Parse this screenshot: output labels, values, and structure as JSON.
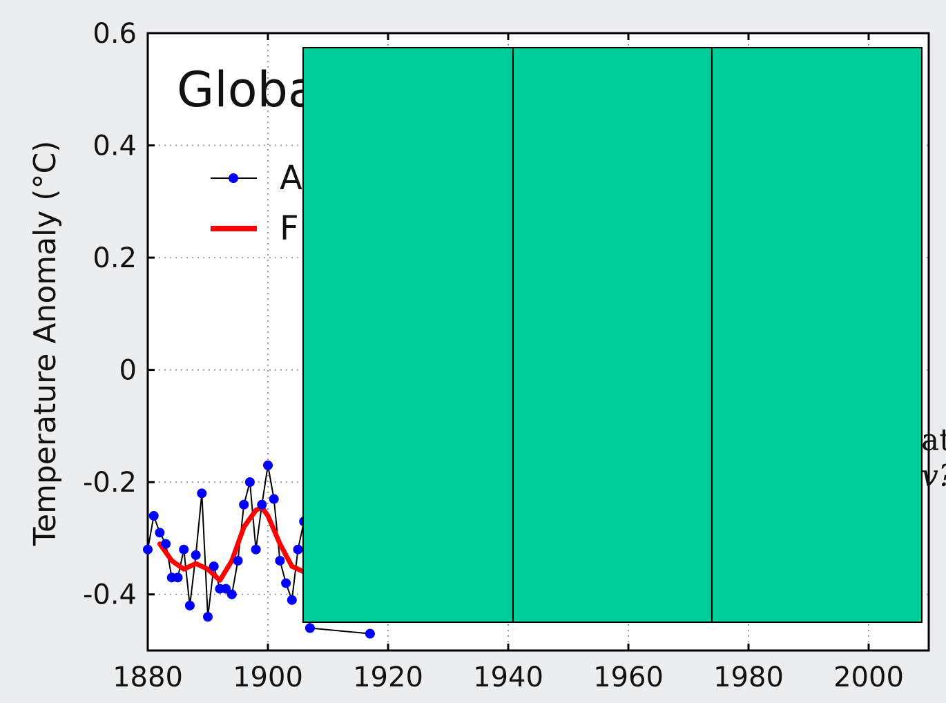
{
  "colors": {
    "background": "#ecedef",
    "plot_bg": "#ffffff",
    "points": "#0000ff",
    "line": "#000000",
    "smooth": "#ff0000",
    "overlay": "#00cc99"
  },
  "chart_data": {
    "type": "line",
    "title": "Globa",
    "ylabel": "Temperature Anomaly (°C)",
    "xlabel": "",
    "xlim": [
      1880,
      2010
    ],
    "ylim": [
      -0.5,
      0.6
    ],
    "xticks": [
      "1880",
      "1900",
      "1920",
      "1940",
      "1960",
      "1980",
      "2000"
    ],
    "yticks": [
      "0.6",
      "0.4",
      "0.2",
      "0",
      "-0.2",
      "-0.4"
    ],
    "grid": true,
    "legend": {
      "placement": "top-left",
      "entries": [
        "A",
        "F"
      ]
    },
    "series": [
      {
        "marker": "circle",
        "x": [
          1880,
          1881,
          1882,
          1883,
          1884,
          1885,
          1886,
          1887,
          1888,
          1889,
          1890,
          1891,
          1892,
          1893,
          1894,
          1895,
          1896,
          1897,
          1898,
          1899,
          1900,
          1901,
          1902,
          1903,
          1904,
          1905,
          1906,
          1907,
          1917
        ],
        "y": [
          -0.32,
          -0.26,
          -0.29,
          -0.31,
          -0.37,
          -0.37,
          -0.32,
          -0.42,
          -0.33,
          -0.22,
          -0.44,
          -0.35,
          -0.39,
          -0.39,
          -0.4,
          -0.34,
          -0.24,
          -0.2,
          -0.32,
          -0.24,
          -0.17,
          -0.23,
          -0.34,
          -0.38,
          -0.41,
          -0.32,
          -0.27,
          -0.46,
          -0.47
        ]
      },
      {
        "style": "smooth",
        "x": [
          1882,
          1884,
          1886,
          1888,
          1890,
          1892,
          1894,
          1896,
          1898,
          1899,
          1900,
          1902,
          1904,
          1906
        ],
        "y": [
          -0.31,
          -0.34,
          -0.355,
          -0.345,
          -0.355,
          -0.375,
          -0.34,
          -0.28,
          -0.25,
          -0.245,
          -0.26,
          -0.31,
          -0.35,
          -0.36
        ]
      }
    ]
  },
  "overlay": {
    "panels": 3
  },
  "partial_text": [
    "at",
    "v?"
  ]
}
